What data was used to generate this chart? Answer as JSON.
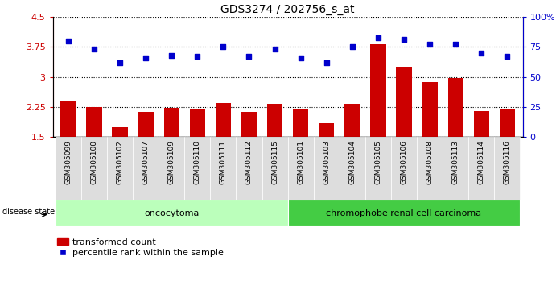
{
  "title": "GDS3274 / 202756_s_at",
  "samples": [
    "GSM305099",
    "GSM305100",
    "GSM305102",
    "GSM305107",
    "GSM305109",
    "GSM305110",
    "GSM305111",
    "GSM305112",
    "GSM305115",
    "GSM305101",
    "GSM305103",
    "GSM305104",
    "GSM305105",
    "GSM305106",
    "GSM305108",
    "GSM305113",
    "GSM305114",
    "GSM305116"
  ],
  "transformed_count_all": [
    2.38,
    2.25,
    1.75,
    2.13,
    2.22,
    2.18,
    2.35,
    2.12,
    2.32,
    2.18,
    1.85,
    2.32,
    3.82,
    3.25,
    2.88,
    2.97,
    2.15,
    2.18
  ],
  "percentile_rank_all": [
    80,
    73,
    62,
    66,
    68,
    67,
    75,
    67,
    73,
    66,
    62,
    75,
    83,
    81,
    77,
    77,
    70,
    67
  ],
  "oncocytoma_count": 9,
  "chromophobe_count": 9,
  "ylim_left": [
    1.5,
    4.5
  ],
  "ylim_right": [
    0,
    100
  ],
  "yticks_left": [
    1.5,
    2.25,
    3.0,
    3.75,
    4.5
  ],
  "yticks_right": [
    0,
    25,
    50,
    75,
    100
  ],
  "ytick_labels_left": [
    "1.5",
    "2.25",
    "3",
    "3.75",
    "4.5"
  ],
  "ytick_labels_right": [
    "0",
    "25",
    "50",
    "75",
    "100%"
  ],
  "bar_color": "#cc0000",
  "dot_color": "#0000cc",
  "oncocytoma_color": "#bbffbb",
  "chromophobe_color": "#44cc44",
  "label_bg_color": "#dddddd",
  "legend_bar_label": "transformed count",
  "legend_dot_label": "percentile rank within the sample",
  "oncocytoma_label": "oncocytoma",
  "chromophobe_label": "chromophobe renal cell carcinoma",
  "disease_state_label": "disease state"
}
